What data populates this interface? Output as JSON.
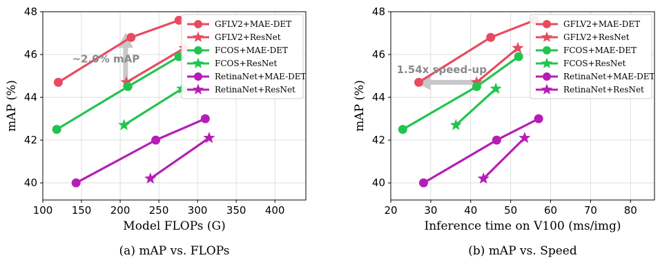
{
  "colors": {
    "gflv2": "#e84a5f",
    "fcos": "#21c44e",
    "retina": "#b51db5",
    "annotation": "#c8c8c8",
    "grid": "#dddddd"
  },
  "chart_data": [
    {
      "type": "line",
      "caption": "(a) mAP vs. FLOPs",
      "xlabel": "Model FLOPs (G)",
      "ylabel": "mAP (%)",
      "xlim": [
        100,
        440
      ],
      "ylim": [
        39.2,
        48.0
      ],
      "xticks": [
        100,
        150,
        200,
        250,
        300,
        350,
        400
      ],
      "yticks": [
        40,
        42,
        44,
        46,
        48
      ],
      "grid": true,
      "legend_position": "top-right",
      "series": [
        {
          "name": "GFLV2+MAE-DET",
          "marker": "circle",
          "color": "#e84a5f",
          "x": [
            120,
            214,
            276
          ],
          "y": [
            44.7,
            46.8,
            47.6
          ]
        },
        {
          "name": "GFLV2+ResNet",
          "marker": "star",
          "color": "#e84a5f",
          "x": [
            208,
            283
          ],
          "y": [
            44.7,
            46.3
          ]
        },
        {
          "name": "FCOS+MAE-DET",
          "marker": "circle",
          "color": "#21c44e",
          "x": [
            118,
            210,
            276
          ],
          "y": [
            42.5,
            44.5,
            45.9
          ]
        },
        {
          "name": "FCOS+ResNet",
          "marker": "star",
          "color": "#21c44e",
          "x": [
            205,
            280
          ],
          "y": [
            42.7,
            44.4
          ]
        },
        {
          "name": "RetinaNet+MAE-DET",
          "marker": "circle",
          "color": "#b51db5",
          "x": [
            143,
            246,
            310
          ],
          "y": [
            40.0,
            42.0,
            43.0
          ]
        },
        {
          "name": "RetinaNet+ResNet",
          "marker": "star",
          "color": "#b51db5",
          "x": [
            239,
            315
          ],
          "y": [
            40.2,
            42.1
          ]
        }
      ],
      "annotation": {
        "text": "~2.0% mAP",
        "arrow": {
          "x": 207,
          "from_y": 44.7,
          "to_y": 46.8
        }
      }
    },
    {
      "type": "line",
      "caption": "(b) mAP vs. Speed",
      "xlabel": "Inference time on V100 (ms/img)",
      "ylabel": "mAP (%)",
      "xlim": [
        20,
        86
      ],
      "ylim": [
        39.2,
        48.0
      ],
      "xticks": [
        20,
        30,
        40,
        50,
        60,
        70,
        80
      ],
      "yticks": [
        40,
        42,
        44,
        46,
        48
      ],
      "grid": true,
      "legend_position": "top-right",
      "series": [
        {
          "name": "GFLV2+MAE-DET",
          "marker": "circle",
          "color": "#e84a5f",
          "x": [
            27,
            45,
            56
          ],
          "y": [
            44.7,
            46.8,
            47.6
          ]
        },
        {
          "name": "GFLV2+ResNet",
          "marker": "star",
          "color": "#e84a5f",
          "x": [
            41.5,
            51.8
          ],
          "y": [
            44.7,
            46.3
          ]
        },
        {
          "name": "FCOS+MAE-DET",
          "marker": "circle",
          "color": "#21c44e",
          "x": [
            23,
            41.5,
            52
          ],
          "y": [
            42.5,
            44.5,
            45.9
          ]
        },
        {
          "name": "FCOS+ResNet",
          "marker": "star",
          "color": "#21c44e",
          "x": [
            36.3,
            46.3
          ],
          "y": [
            42.7,
            44.4
          ]
        },
        {
          "name": "RetinaNet+MAE-DET",
          "marker": "circle",
          "color": "#b51db5",
          "x": [
            28.2,
            46.5,
            57
          ],
          "y": [
            40.0,
            42.0,
            43.0
          ]
        },
        {
          "name": "RetinaNet+ResNet",
          "marker": "star",
          "color": "#b51db5",
          "x": [
            43.2,
            53.5
          ],
          "y": [
            40.2,
            42.1
          ]
        }
      ],
      "annotation": {
        "text": "1.54x speed-up",
        "arrow": {
          "y": 44.7,
          "from_x": 41.5,
          "to_x": 27
        }
      }
    }
  ]
}
